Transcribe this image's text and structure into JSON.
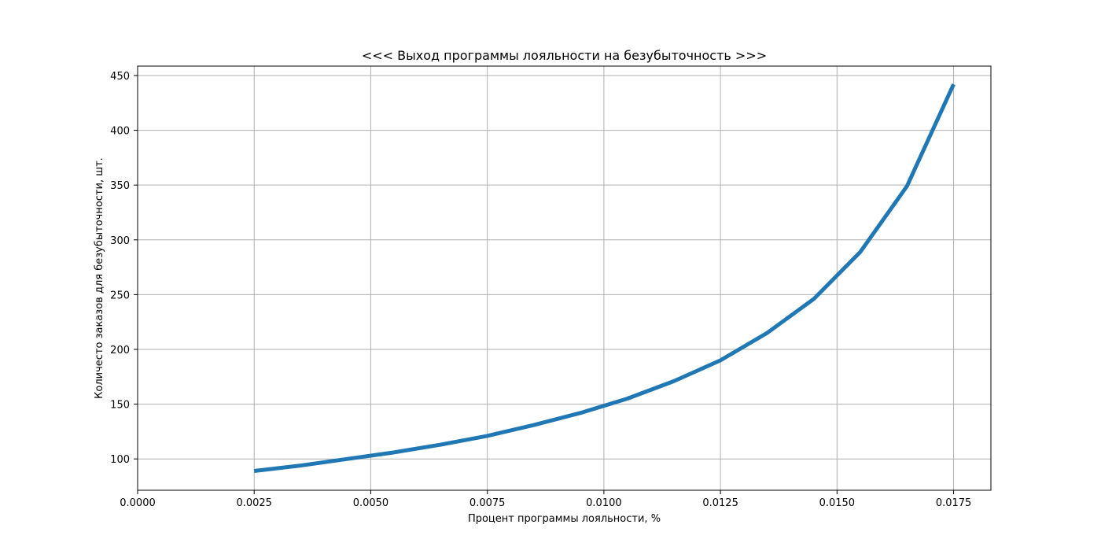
{
  "chart_data": {
    "type": "line",
    "title": "<<< Выход программы лояльности на безубыточность >>>",
    "xlabel": "Процент программы лояльности, %",
    "ylabel": "Количесто заказов для безубыточности, шт.",
    "xlim": [
      0.0,
      0.0183
    ],
    "ylim": [
      71.4,
      458.6
    ],
    "x_ticks": [
      0.0,
      0.0025,
      0.005,
      0.0075,
      0.01,
      0.0125,
      0.015,
      0.0175
    ],
    "x_tick_labels": [
      "0.0000",
      "0.0025",
      "0.0050",
      "0.0075",
      "0.0100",
      "0.0125",
      "0.0150",
      "0.0175"
    ],
    "y_ticks": [
      100,
      150,
      200,
      250,
      300,
      350,
      400,
      450
    ],
    "y_tick_labels": [
      "100",
      "150",
      "200",
      "250",
      "300",
      "350",
      "400",
      "450"
    ],
    "grid": true,
    "series": [
      {
        "color": "#1f77b4",
        "x": [
          0.0025,
          0.0035,
          0.0045,
          0.0055,
          0.0065,
          0.0075,
          0.0085,
          0.0095,
          0.0105,
          0.0115,
          0.0125,
          0.0135,
          0.0145,
          0.0155,
          0.0165,
          0.0175
        ],
        "y": [
          89,
          94,
          100,
          106,
          113,
          121,
          131,
          142,
          155,
          171,
          190,
          215,
          246,
          289,
          349,
          442
        ]
      }
    ]
  }
}
